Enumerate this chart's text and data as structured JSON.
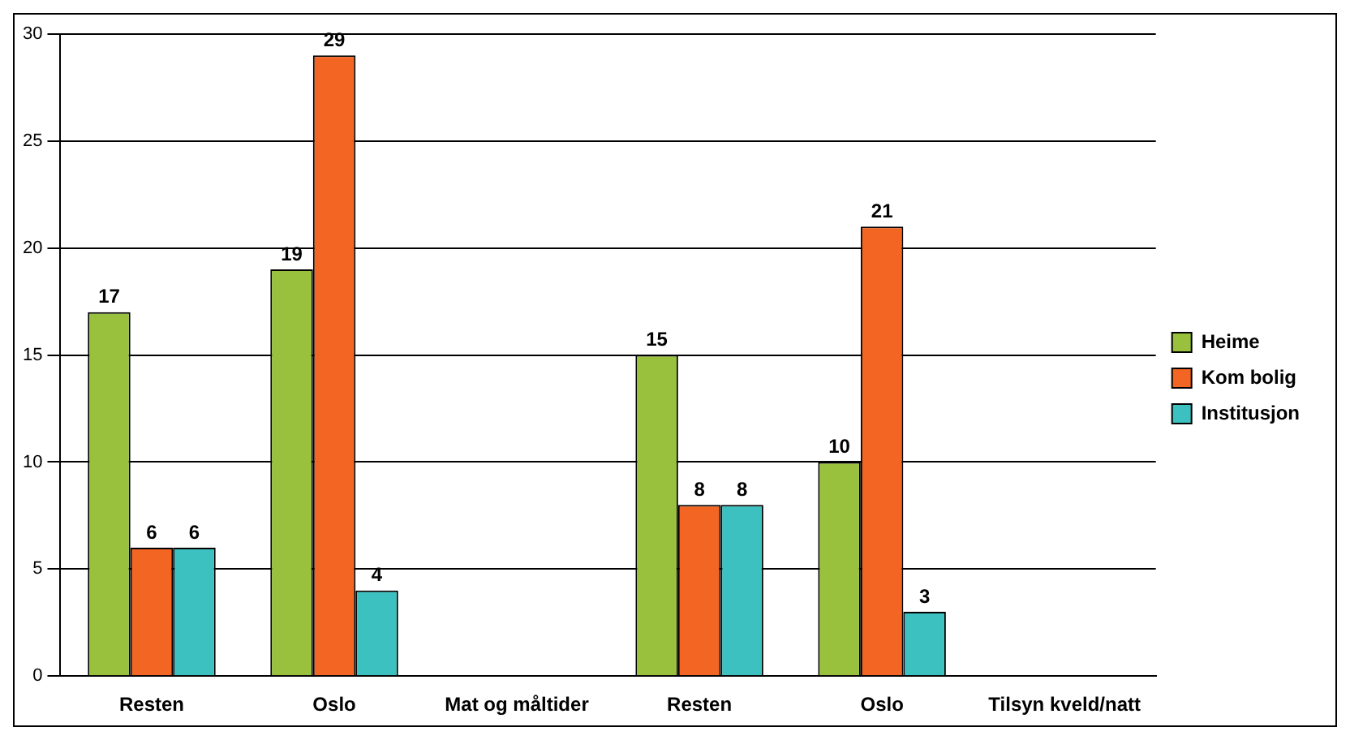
{
  "chart_data": {
    "type": "bar",
    "categories": [
      "Resten",
      "Oslo",
      "Mat og måltider",
      "Resten",
      "Oslo",
      "Tilsyn kveld/natt"
    ],
    "series": [
      {
        "name": "Heime",
        "color": "#99c13d",
        "values": [
          17,
          19,
          null,
          15,
          10,
          null
        ]
      },
      {
        "name": "Kom bolig",
        "color": "#f26522",
        "values": [
          6,
          29,
          null,
          8,
          21,
          null
        ]
      },
      {
        "name": "Institusjon",
        "color": "#3cc0c0",
        "values": [
          6,
          4,
          null,
          8,
          3,
          null
        ]
      }
    ],
    "ylim": [
      0,
      30
    ],
    "yticks": [
      0,
      5,
      10,
      15,
      20,
      25,
      30
    ],
    "grid": "y",
    "legend": "right",
    "data_labels": true
  }
}
